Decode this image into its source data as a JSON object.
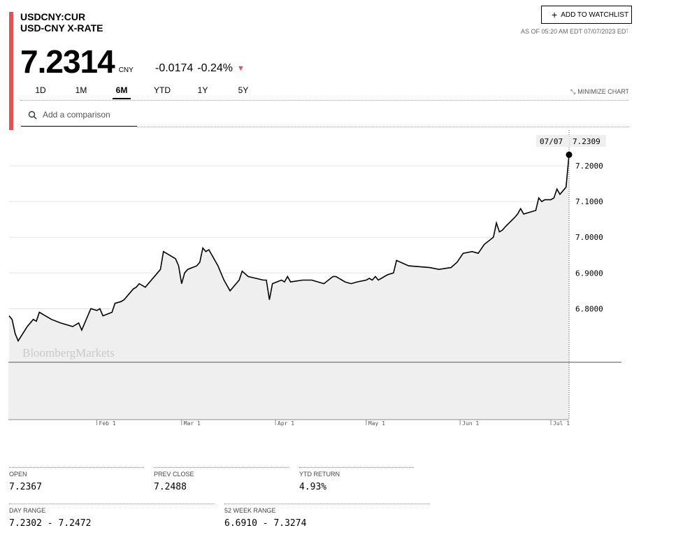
{
  "security": {
    "ticker": "USDCNY:CUR",
    "name": "USD-CNY X-RATE",
    "price": "7.2314",
    "currency": "CNY",
    "change": "-0.0174",
    "change_pct": "-0.24%",
    "direction": "down",
    "down_color": "#e05353"
  },
  "header": {
    "watchlist_label": "ADD TO WATCHLIST",
    "as_of": "AS OF 05:20 AM EDT 07/07/2023 EDT",
    "minimize_label": "MINIMIZE CHART"
  },
  "ranges": [
    "1D",
    "1M",
    "6M",
    "YTD",
    "1Y",
    "5Y"
  ],
  "active_range": "6M",
  "comparison": {
    "placeholder": "Add a comparison"
  },
  "chart_data": {
    "type": "area",
    "watermark": "BloombergMarkets",
    "tooltip": {
      "date": "07/07",
      "value": "7.2309"
    },
    "x_ticks": [
      "Feb 1",
      "Mar 1",
      "Apr 1",
      "May 1",
      "Jun 1",
      "Jul 1"
    ],
    "y_ticks": [
      "7.2000",
      "7.1000",
      "7.0000",
      "6.9000",
      "6.8000"
    ],
    "ylim": [
      6.65,
      7.3
    ],
    "series": [
      {
        "values": [
          [
            "2023-01-03",
            6.78
          ],
          [
            "2023-01-04",
            6.77
          ],
          [
            "2023-01-05",
            6.73
          ],
          [
            "2023-01-06",
            6.71
          ],
          [
            "2023-01-09",
            6.75
          ],
          [
            "2023-01-10",
            6.76
          ],
          [
            "2023-01-11",
            6.77
          ],
          [
            "2023-01-12",
            6.765
          ],
          [
            "2023-01-13",
            6.79
          ],
          [
            "2023-01-17",
            6.77
          ],
          [
            "2023-01-20",
            6.76
          ],
          [
            "2023-01-24",
            6.75
          ],
          [
            "2023-01-26",
            6.76
          ],
          [
            "2023-01-27",
            6.74
          ],
          [
            "2023-01-30",
            6.8
          ],
          [
            "2023-02-01",
            6.795
          ],
          [
            "2023-02-02",
            6.8
          ],
          [
            "2023-02-03",
            6.78
          ],
          [
            "2023-02-06",
            6.79
          ],
          [
            "2023-02-07",
            6.815
          ],
          [
            "2023-02-09",
            6.82
          ],
          [
            "2023-02-10",
            6.825
          ],
          [
            "2023-02-13",
            6.855
          ],
          [
            "2023-02-14",
            6.86
          ],
          [
            "2023-02-15",
            6.87
          ],
          [
            "2023-02-17",
            6.86
          ],
          [
            "2023-02-21",
            6.9
          ],
          [
            "2023-02-22",
            6.91
          ],
          [
            "2023-02-23",
            6.96
          ],
          [
            "2023-02-27",
            6.94
          ],
          [
            "2023-02-28",
            6.92
          ],
          [
            "2023-03-01",
            6.87
          ],
          [
            "2023-03-02",
            6.9
          ],
          [
            "2023-03-03",
            6.91
          ],
          [
            "2023-03-06",
            6.92
          ],
          [
            "2023-03-07",
            6.93
          ],
          [
            "2023-03-08",
            6.97
          ],
          [
            "2023-03-09",
            6.96
          ],
          [
            "2023-03-10",
            6.965
          ],
          [
            "2023-03-13",
            6.92
          ],
          [
            "2023-03-15",
            6.88
          ],
          [
            "2023-03-17",
            6.85
          ],
          [
            "2023-03-20",
            6.88
          ],
          [
            "2023-03-21",
            6.905
          ],
          [
            "2023-03-23",
            6.89
          ],
          [
            "2023-03-28",
            6.88
          ],
          [
            "2023-03-29",
            6.88
          ],
          [
            "2023-03-30",
            6.825
          ],
          [
            "2023-03-31",
            6.87
          ],
          [
            "2023-04-03",
            6.88
          ],
          [
            "2023-04-04",
            6.875
          ],
          [
            "2023-04-05",
            6.89
          ],
          [
            "2023-04-06",
            6.875
          ],
          [
            "2023-04-10",
            6.88
          ],
          [
            "2023-04-13",
            6.88
          ],
          [
            "2023-04-17",
            6.87
          ],
          [
            "2023-04-20",
            6.89
          ],
          [
            "2023-04-21",
            6.89
          ],
          [
            "2023-04-24",
            6.875
          ],
          [
            "2023-04-26",
            6.87
          ],
          [
            "2023-04-28",
            6.875
          ],
          [
            "2023-05-01",
            6.88
          ],
          [
            "2023-05-02",
            6.885
          ],
          [
            "2023-05-03",
            6.88
          ],
          [
            "2023-05-04",
            6.89
          ],
          [
            "2023-05-05",
            6.88
          ],
          [
            "2023-05-08",
            6.895
          ],
          [
            "2023-05-10",
            6.9
          ],
          [
            "2023-05-11",
            6.935
          ],
          [
            "2023-05-15",
            6.92
          ],
          [
            "2023-05-22",
            6.915
          ],
          [
            "2023-05-25",
            6.91
          ],
          [
            "2023-05-29",
            6.915
          ],
          [
            "2023-05-31",
            6.93
          ],
          [
            "2023-06-02",
            6.955
          ],
          [
            "2023-06-05",
            6.96
          ],
          [
            "2023-06-07",
            6.955
          ],
          [
            "2023-06-09",
            6.98
          ],
          [
            "2023-06-12",
            7.0
          ],
          [
            "2023-06-13",
            7.04
          ],
          [
            "2023-06-14",
            7.015
          ],
          [
            "2023-06-15",
            7.02
          ],
          [
            "2023-06-16",
            7.03
          ],
          [
            "2023-06-19",
            7.055
          ],
          [
            "2023-06-20",
            7.065
          ],
          [
            "2023-06-21",
            7.08
          ],
          [
            "2023-06-22",
            7.065
          ],
          [
            "2023-06-26",
            7.075
          ],
          [
            "2023-06-27",
            7.11
          ],
          [
            "2023-06-28",
            7.1
          ],
          [
            "2023-06-29",
            7.105
          ],
          [
            "2023-07-01",
            7.105
          ],
          [
            "2023-07-02",
            7.11
          ],
          [
            "2023-07-03",
            7.135
          ],
          [
            "2023-07-04",
            7.12
          ],
          [
            "2023-07-05",
            7.13
          ],
          [
            "2023-07-06",
            7.14
          ]
        ]
      }
    ]
  },
  "stats": [
    {
      "label": "OPEN",
      "value": "7.2367"
    },
    {
      "label": "PREV CLOSE",
      "value": "7.2488"
    },
    {
      "label": "YTD RETURN",
      "value": "4.93%"
    },
    {
      "label": "DAY RANGE",
      "value": "7.2302 - 7.2472"
    },
    {
      "label": "52 WEEK RANGE",
      "value": "6.6910 - 7.3274"
    }
  ]
}
